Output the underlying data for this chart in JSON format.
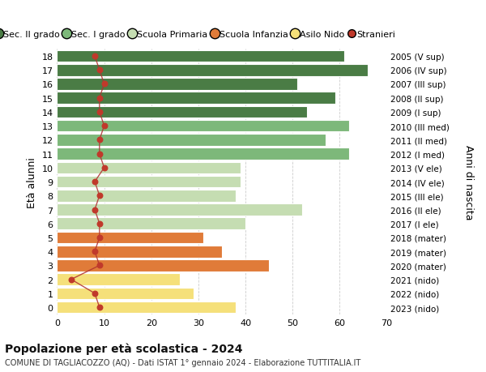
{
  "ages": [
    18,
    17,
    16,
    15,
    14,
    13,
    12,
    11,
    10,
    9,
    8,
    7,
    6,
    5,
    4,
    3,
    2,
    1,
    0
  ],
  "right_labels": [
    "2005 (V sup)",
    "2006 (IV sup)",
    "2007 (III sup)",
    "2008 (II sup)",
    "2009 (I sup)",
    "2010 (III med)",
    "2011 (II med)",
    "2012 (I med)",
    "2013 (V ele)",
    "2014 (IV ele)",
    "2015 (III ele)",
    "2016 (II ele)",
    "2017 (I ele)",
    "2018 (mater)",
    "2019 (mater)",
    "2020 (mater)",
    "2021 (nido)",
    "2022 (nido)",
    "2023 (nido)"
  ],
  "bar_values": [
    61,
    66,
    51,
    59,
    53,
    62,
    57,
    62,
    39,
    39,
    38,
    52,
    40,
    31,
    35,
    45,
    26,
    29,
    38
  ],
  "bar_colors": [
    "#4a7c45",
    "#4a7c45",
    "#4a7c45",
    "#4a7c45",
    "#4a7c45",
    "#7db87a",
    "#7db87a",
    "#7db87a",
    "#c5ddb2",
    "#c5ddb2",
    "#c5ddb2",
    "#c5ddb2",
    "#c5ddb2",
    "#e07b39",
    "#e07b39",
    "#e07b39",
    "#f5e07a",
    "#f5e07a",
    "#f5e07a"
  ],
  "stranieri_values": [
    8,
    9,
    10,
    9,
    9,
    10,
    9,
    9,
    10,
    8,
    9,
    8,
    9,
    9,
    8,
    9,
    3,
    8,
    9
  ],
  "title_bold": "Popolazione per età scolastica - 2024",
  "subtitle": "COMUNE DI TAGLIACOZZO (AQ) - Dati ISTAT 1° gennaio 2024 - Elaborazione TUTTITALIA.IT",
  "ylabel": "Età alunni",
  "right_ylabel": "Anni di nascita",
  "xlim": [
    0,
    70
  ],
  "xticks": [
    0,
    10,
    20,
    30,
    40,
    50,
    60,
    70
  ],
  "legend_labels": [
    "Sec. II grado",
    "Sec. I grado",
    "Scuola Primaria",
    "Scuola Infanzia",
    "Asilo Nido",
    "Stranieri"
  ],
  "legend_colors": [
    "#4a7c45",
    "#7db87a",
    "#c5ddb2",
    "#e07b39",
    "#f5e07a",
    "#c0392b"
  ],
  "bg_color": "#ffffff",
  "grid_color": "#cccccc",
  "bar_height": 0.85
}
